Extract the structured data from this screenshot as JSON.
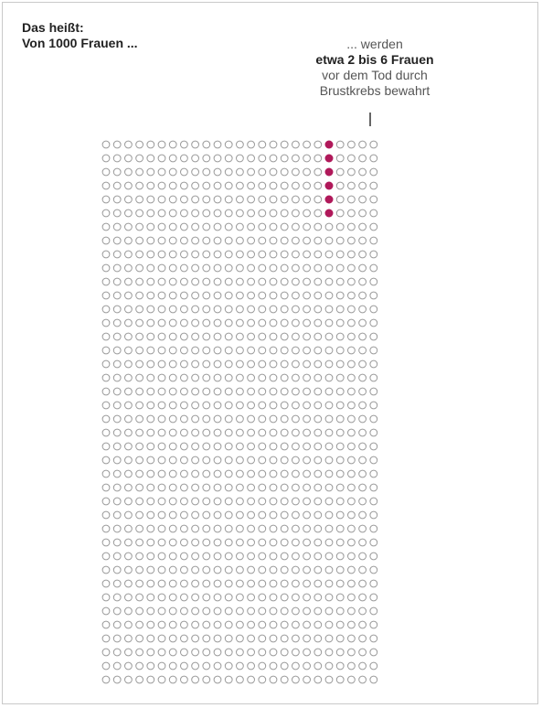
{
  "heading": {
    "line1": "Das heißt:",
    "line2": "Von 1000 Frauen ..."
  },
  "callout": {
    "line1": "... werden",
    "line2": "etwa 2 bis 6 Frauen",
    "line3": "vor dem Tod durch",
    "line4": "Brustkrebs bewahrt"
  },
  "grid": {
    "total": 1000,
    "columns": 25,
    "rows": 40,
    "highlighted_column": 20,
    "highlighted_count": 6,
    "highlight_color": "#b0195a",
    "empty_color": "#9a9a9a"
  }
}
